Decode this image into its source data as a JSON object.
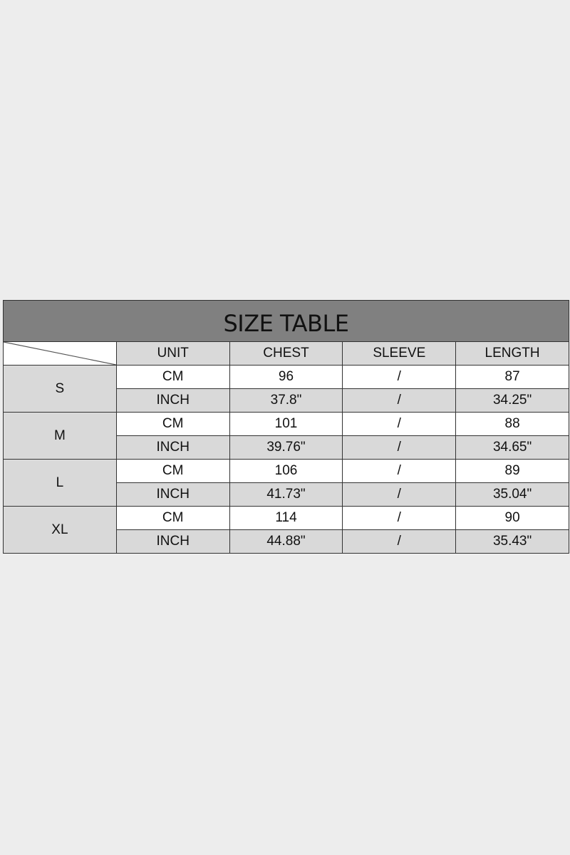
{
  "title": "SIZE TABLE",
  "headers": [
    "UNIT",
    "CHEST",
    "SLEEVE",
    "LENGTH"
  ],
  "sizes": [
    {
      "size": "S",
      "rows": [
        {
          "unit": "CM",
          "chest": "96",
          "sleeve": "/",
          "length": "87"
        },
        {
          "unit": "INCH",
          "chest": "37.8\"",
          "sleeve": "/",
          "length": "34.25\""
        }
      ]
    },
    {
      "size": "M",
      "rows": [
        {
          "unit": "CM",
          "chest": "101",
          "sleeve": "/",
          "length": "88"
        },
        {
          "unit": "INCH",
          "chest": "39.76\"",
          "sleeve": "/",
          "length": "34.65\""
        }
      ]
    },
    {
      "size": "L",
      "rows": [
        {
          "unit": "CM",
          "chest": "106",
          "sleeve": "/",
          "length": "89"
        },
        {
          "unit": "INCH",
          "chest": "41.73\"",
          "sleeve": "/",
          "length": "35.04\""
        }
      ]
    },
    {
      "size": "XL",
      "rows": [
        {
          "unit": "CM",
          "chest": "114",
          "sleeve": "/",
          "length": "90"
        },
        {
          "unit": "INCH",
          "chest": "44.88\"",
          "sleeve": "/",
          "length": "35.43\""
        }
      ]
    }
  ],
  "colors": {
    "background": "#ededed",
    "title_bg": "#808080",
    "shaded_cell": "#d9d9d9"
  }
}
